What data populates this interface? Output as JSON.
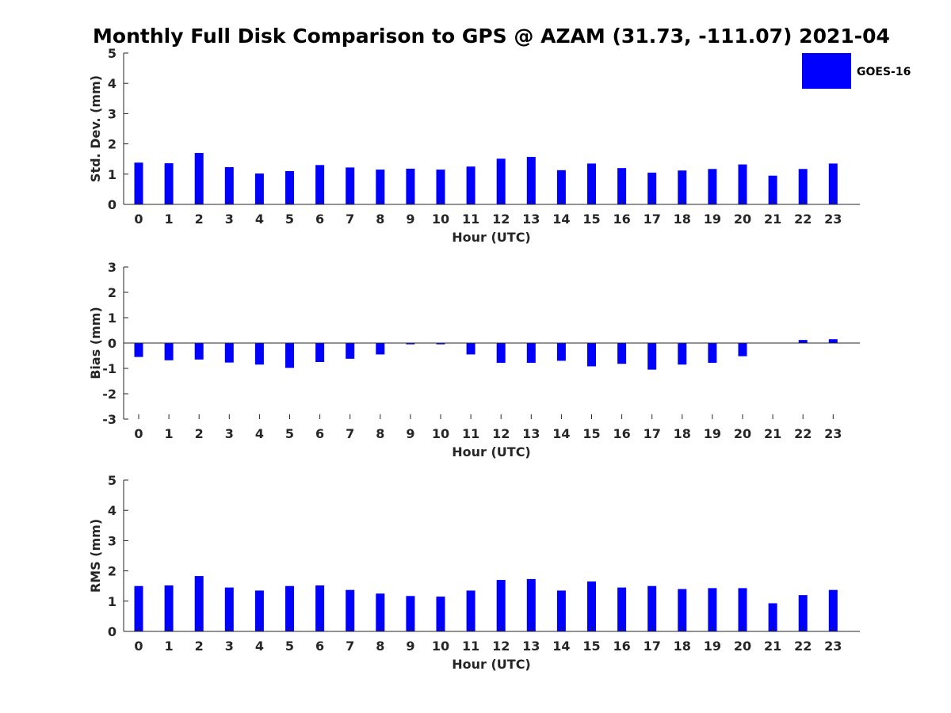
{
  "title": "Monthly Full Disk Comparison to GPS @ AZAM (31.73, -111.07) 2021-04",
  "legend": {
    "label": "GOES-16",
    "color": "#0000ff",
    "placement": "top-right"
  },
  "chart_data": [
    {
      "type": "bar",
      "categories": [
        "0",
        "1",
        "2",
        "3",
        "4",
        "5",
        "6",
        "7",
        "8",
        "9",
        "10",
        "11",
        "12",
        "13",
        "14",
        "15",
        "16",
        "17",
        "18",
        "19",
        "20",
        "21",
        "22",
        "23"
      ],
      "series": [
        {
          "name": "GOES-16",
          "values": [
            1.38,
            1.36,
            1.7,
            1.23,
            1.02,
            1.1,
            1.3,
            1.22,
            1.15,
            1.18,
            1.15,
            1.25,
            1.51,
            1.57,
            1.13,
            1.35,
            1.2,
            1.05,
            1.12,
            1.17,
            1.32,
            0.95,
            1.17,
            1.35
          ]
        }
      ],
      "xlabel": "Hour (UTC)",
      "ylabel": "Std. Dev. (mm)",
      "ylim": [
        0,
        5
      ],
      "yticks": [
        "0",
        "1",
        "2",
        "3",
        "4",
        "5"
      ],
      "grid": false
    },
    {
      "type": "bar",
      "categories": [
        "0",
        "1",
        "2",
        "3",
        "4",
        "5",
        "6",
        "7",
        "8",
        "9",
        "10",
        "11",
        "12",
        "13",
        "14",
        "15",
        "16",
        "17",
        "18",
        "19",
        "20",
        "21",
        "22",
        "23"
      ],
      "series": [
        {
          "name": "GOES-16",
          "values": [
            -0.55,
            -0.68,
            -0.65,
            -0.77,
            -0.85,
            -0.98,
            -0.75,
            -0.62,
            -0.45,
            -0.05,
            -0.05,
            -0.45,
            -0.78,
            -0.78,
            -0.7,
            -0.92,
            -0.82,
            -1.05,
            -0.85,
            -0.78,
            -0.52,
            0.0,
            0.12,
            0.15
          ]
        }
      ],
      "xlabel": "Hour (UTC)",
      "ylabel": "Bias (mm)",
      "ylim": [
        -3,
        3
      ],
      "yticks": [
        "-3",
        "-2",
        "-1",
        "0",
        "1",
        "2",
        "3"
      ],
      "grid": false
    },
    {
      "type": "bar",
      "categories": [
        "0",
        "1",
        "2",
        "3",
        "4",
        "5",
        "6",
        "7",
        "8",
        "9",
        "10",
        "11",
        "12",
        "13",
        "14",
        "15",
        "16",
        "17",
        "18",
        "19",
        "20",
        "21",
        "22",
        "23"
      ],
      "series": [
        {
          "name": "GOES-16",
          "values": [
            1.5,
            1.52,
            1.83,
            1.45,
            1.35,
            1.5,
            1.52,
            1.37,
            1.25,
            1.17,
            1.15,
            1.35,
            1.7,
            1.73,
            1.35,
            1.65,
            1.45,
            1.5,
            1.4,
            1.43,
            1.43,
            0.93,
            1.2,
            1.37
          ]
        }
      ],
      "xlabel": "Hour (UTC)",
      "ylabel": "RMS (mm)",
      "ylim": [
        0,
        5
      ],
      "yticks": [
        "0",
        "1",
        "2",
        "3",
        "4",
        "5"
      ],
      "grid": false
    }
  ]
}
